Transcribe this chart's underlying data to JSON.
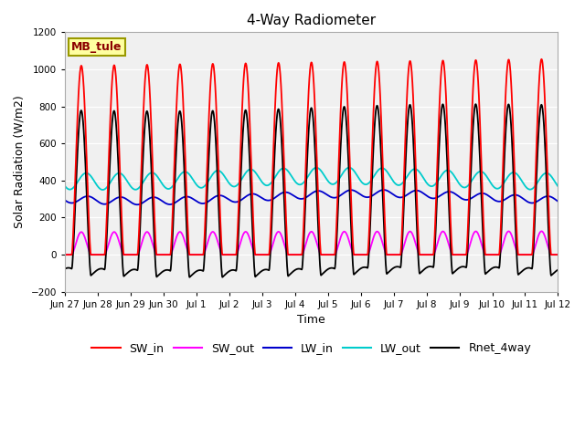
{
  "title": "4-Way Radiometer",
  "xlabel": "Time",
  "ylabel": "Solar Radiation (W/m2)",
  "ylim": [
    -200,
    1200
  ],
  "yticks": [
    -200,
    0,
    200,
    400,
    600,
    800,
    1000,
    1200
  ],
  "plot_bg_color": "#f0f0f0",
  "fig_bg_color": "#ffffff",
  "station_label": "MB_tule",
  "legend_entries": [
    "SW_in",
    "SW_out",
    "LW_in",
    "LW_out",
    "Rnet_4way"
  ],
  "line_colors": {
    "SW_in": "#ff0000",
    "SW_out": "#ff00ff",
    "LW_in": "#0000cc",
    "LW_out": "#00cccc",
    "Rnet_4way": "#000000"
  },
  "xtick_labels": [
    "Jun 27",
    "Jun 28",
    "Jun 29",
    "Jun 30",
    "Jul 1",
    "Jul 2",
    "Jul 3",
    "Jul 4",
    "Jul 5",
    "Jul 6",
    "Jul 7",
    "Jul 8",
    "Jul 9",
    "Jul 10",
    "Jul 11",
    "Jul 12"
  ],
  "n_days": 16,
  "dt_hours": 0.25
}
